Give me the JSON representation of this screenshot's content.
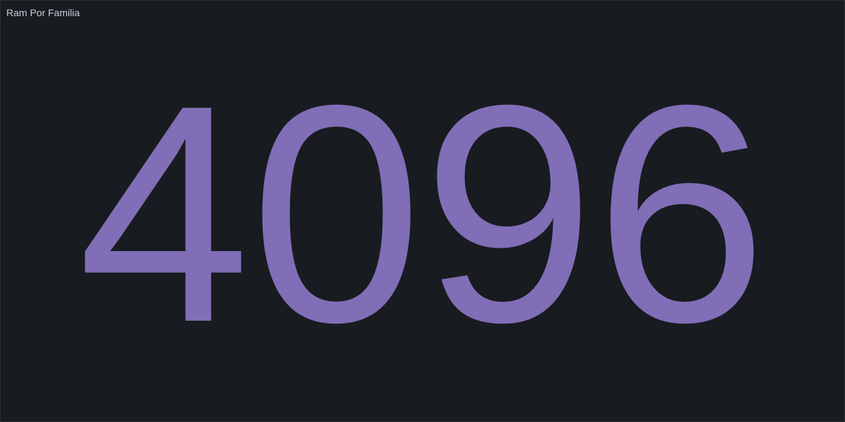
{
  "panel": {
    "title": "Ram Por Familia",
    "value": "4096",
    "value_color": "#806eb7",
    "background_color": "#181b1f",
    "title_color": "#ccccdc"
  }
}
